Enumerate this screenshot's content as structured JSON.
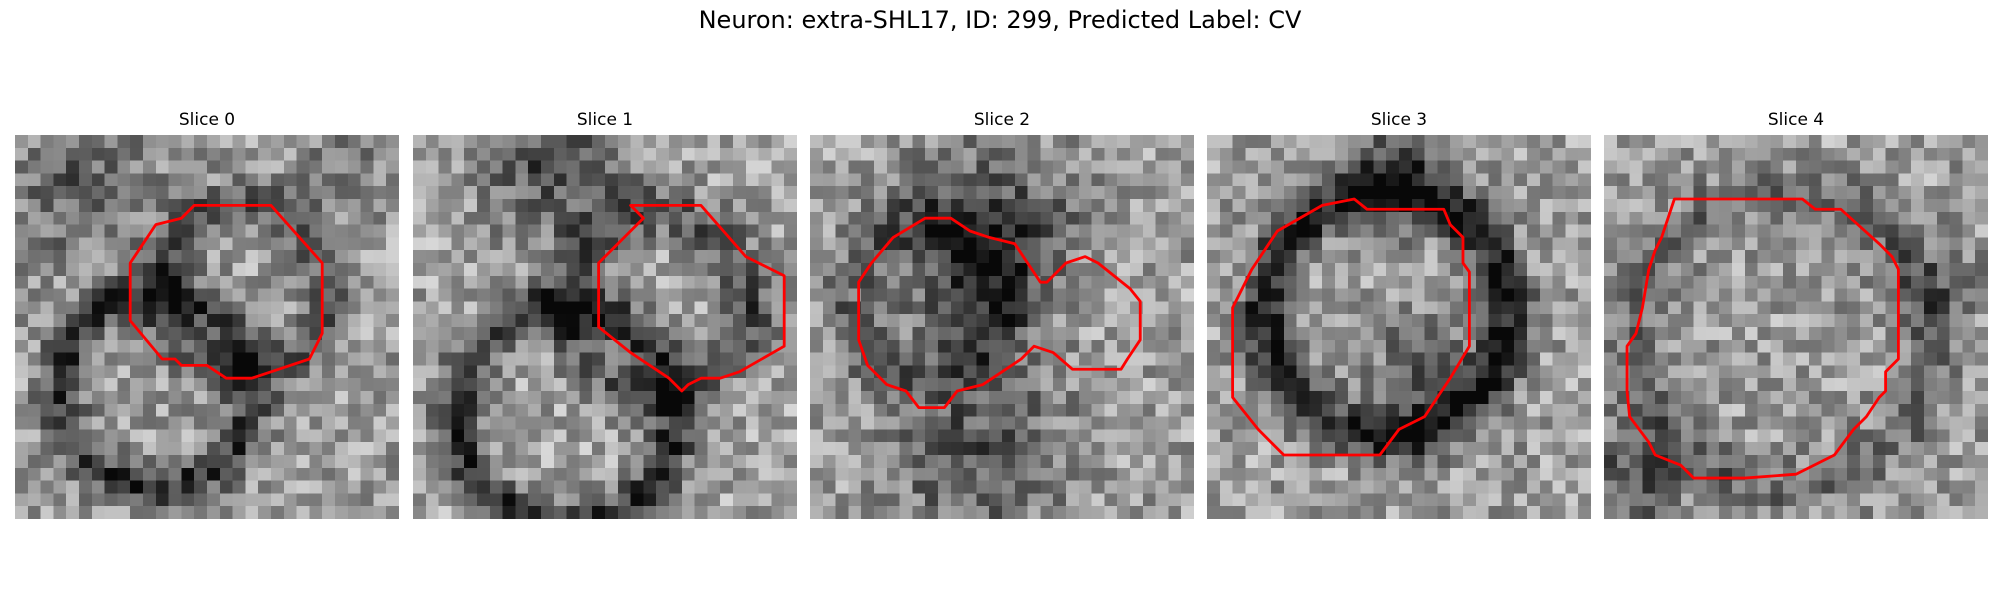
{
  "figure": {
    "title": "Neuron: extra-SHL17, ID: 299, Predicted Label: CV",
    "outline_color": "#ff0000"
  },
  "slices": [
    {
      "title": "Slice 0"
    },
    {
      "title": "Slice 1"
    },
    {
      "title": "Slice 2"
    },
    {
      "title": "Slice 3"
    },
    {
      "title": "Slice 4"
    }
  ]
}
